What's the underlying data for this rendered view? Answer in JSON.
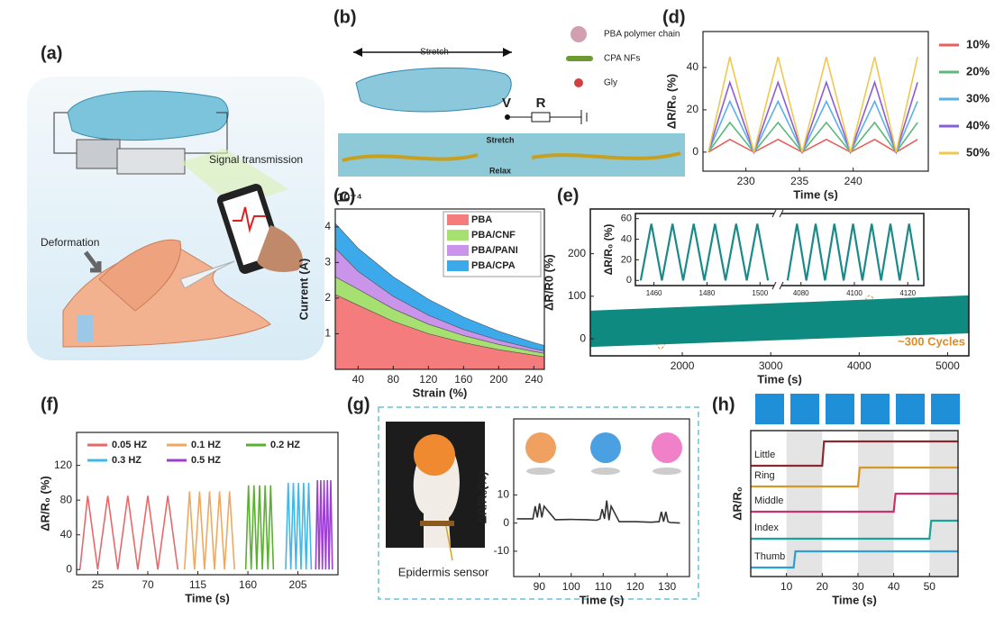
{
  "panel_labels": [
    "(a)",
    "(b)",
    "(c)",
    "(d)",
    "(e)",
    "(f)",
    "(g)",
    "(h)"
  ],
  "illustration_a": {
    "signal": "Signal transmission",
    "deformation": "Deformation"
  },
  "illustration_b": {
    "stretch_top": "Stretch",
    "legend": [
      "PBA polymer chain",
      "CPA NFs",
      "Gly"
    ],
    "voltage": "V",
    "resistor": "R",
    "stretch": "Stretch",
    "relax": "Relax"
  },
  "illustration_g": {
    "sensor": "Epidermis sensor"
  },
  "chart_data": [
    {
      "type": "area",
      "stacked": true,
      "exponent": "10⁻⁴",
      "xlabel": "Strain (%)",
      "ylabel": "Current (A)",
      "x": [
        14,
        40,
        80,
        120,
        160,
        200,
        240,
        252
      ],
      "series": [
        {
          "name": "PBA",
          "color": "#f47c7c",
          "values": [
            2.1,
            1.8,
            1.35,
            1.0,
            0.75,
            0.55,
            0.4,
            0.35
          ]
        },
        {
          "name": "PBA/CNF",
          "color": "#a6e070",
          "values": [
            0.5,
            0.45,
            0.35,
            0.27,
            0.2,
            0.15,
            0.1,
            0.1
          ]
        },
        {
          "name": "PBA/PANI",
          "color": "#c994ea",
          "values": [
            0.8,
            0.5,
            0.35,
            0.25,
            0.17,
            0.12,
            0.08,
            0.07
          ]
        },
        {
          "name": "PBA/CPA",
          "color": "#3ba9ea",
          "values": [
            0.7,
            0.65,
            0.55,
            0.45,
            0.35,
            0.25,
            0.17,
            0.15
          ]
        }
      ],
      "xlim": [
        14,
        252
      ],
      "ylim": [
        0,
        4.5
      ],
      "xticks": [
        40,
        80,
        120,
        160,
        200,
        240
      ],
      "yticks": [
        1,
        2,
        3,
        4
      ],
      "legend": "upper right"
    },
    {
      "type": "line",
      "xlabel": "Time (s)",
      "ylabel": "ΔR/R₀ (%)",
      "x": [
        226.5,
        228.5,
        230.75,
        233,
        235.25,
        237.5,
        239.75,
        242,
        244,
        246
      ],
      "series": [
        {
          "name": "10%",
          "color": "#e8605a",
          "values": [
            0,
            6,
            0,
            6,
            0,
            6,
            0,
            6,
            0,
            6
          ]
        },
        {
          "name": "20%",
          "color": "#5cb87a",
          "values": [
            0,
            14,
            0,
            14,
            0,
            14,
            0,
            14,
            0,
            14
          ]
        },
        {
          "name": "30%",
          "color": "#5ab0e8",
          "values": [
            0,
            24,
            0,
            24,
            0,
            24,
            0,
            24,
            0,
            24
          ]
        },
        {
          "name": "40%",
          "color": "#8a5cd8",
          "values": [
            0,
            33,
            0,
            33,
            0,
            33,
            0,
            33,
            0,
            33
          ]
        },
        {
          "name": "50%",
          "color": "#f0c850",
          "values": [
            0,
            45,
            0,
            45,
            0,
            45,
            0,
            45,
            0,
            45
          ]
        }
      ],
      "xlim": [
        226,
        247
      ],
      "ylim": [
        -9,
        57
      ],
      "xticks": [
        230,
        235,
        240
      ],
      "yticks": [
        0,
        20,
        40
      ],
      "legend": "right"
    },
    {
      "type": "band",
      "xlabel": "Time (s)",
      "ylabel": "ΔR/R0 (%)",
      "color": "#0e8a80",
      "x": [
        960,
        5240
      ],
      "low": [
        -19,
        13
      ],
      "high": [
        66,
        102
      ],
      "xlim": [
        960,
        5240
      ],
      "ylim": [
        -40,
        305
      ],
      "xticks": [
        2000,
        3000,
        4000,
        5000
      ],
      "yticks": [
        0,
        100,
        200
      ],
      "annotation": "~300 Cycles",
      "inset": {
        "ylabel": "ΔR/R₀ (%)",
        "ylim": [
          -5,
          65
        ],
        "yticks": [
          0,
          20,
          40,
          60
        ],
        "color": "#1a8a88",
        "panels": [
          {
            "x": [
              1455,
              1459,
              1463,
              1467,
              1471,
              1475,
              1479,
              1483,
              1487,
              1491,
              1495,
              1499,
              1503
            ],
            "values": [
              0,
              55,
              0,
              55,
              0,
              55,
              0,
              55,
              0,
              55,
              0,
              55,
              0
            ],
            "xlim": [
              1453,
              1505
            ],
            "xticks": [
              1460,
              1480,
              1500
            ]
          },
          {
            "x": [
              4075,
              4078.5,
              4082,
              4085.5,
              4089,
              4092.5,
              4096,
              4099.5,
              4103,
              4106.5,
              4110,
              4113.5,
              4117,
              4120.5,
              4124
            ],
            "values": [
              0,
              55,
              0,
              55,
              0,
              55,
              0,
              55,
              0,
              55,
              0,
              55,
              0,
              55,
              0
            ],
            "xlim": [
              4073,
              4126
            ],
            "xticks": [
              4080,
              4100,
              4120
            ]
          }
        ]
      }
    },
    {
      "type": "line",
      "xlabel": "Time (s)",
      "ylabel": "ΔR/R₀ (%)",
      "series": [
        {
          "name": "0.05 HZ",
          "color": "#e8686a",
          "x": [
            9,
            16,
            25,
            34,
            43,
            52,
            61,
            70,
            79,
            88,
            97
          ],
          "values": [
            0,
            85,
            0,
            85,
            0,
            85,
            0,
            85,
            0,
            85,
            0
          ]
        },
        {
          "name": "0.1 HZ",
          "color": "#f0a860",
          "x": [
            103,
            107.5,
            112,
            116.5,
            121,
            125.5,
            130,
            134.5,
            139,
            143.5,
            148
          ],
          "values": [
            0,
            90,
            0,
            90,
            0,
            90,
            0,
            90,
            0,
            90,
            0
          ]
        },
        {
          "name": "0.2 HZ",
          "color": "#5ab030",
          "x": [
            158,
            160.5,
            163,
            165.5,
            168,
            170.5,
            173,
            175.5,
            178,
            180.5,
            183
          ],
          "values": [
            0,
            97,
            0,
            97,
            0,
            97,
            0,
            97,
            0,
            97,
            0
          ]
        },
        {
          "name": "0.3 HZ",
          "color": "#40b8e8",
          "x": [
            194,
            196.3,
            198.6,
            200.9,
            203.2,
            205.5,
            207.8,
            210.1,
            212.4,
            214.7,
            217
          ],
          "values": [
            0,
            100,
            0,
            100,
            0,
            100,
            0,
            100,
            0,
            100,
            0
          ]
        },
        {
          "name": "0.5 HZ",
          "color": "#9b40d0",
          "x": [
            221,
            222.5,
            224,
            225.5,
            227,
            228.5,
            230,
            231.5,
            233,
            234.5,
            236
          ],
          "values": [
            0,
            103,
            0,
            103,
            0,
            103,
            0,
            103,
            0,
            103,
            0
          ]
        }
      ],
      "xlim": [
        6,
        241
      ],
      "ylim": [
        -6,
        158
      ],
      "xticks": [
        25,
        70,
        115,
        160,
        205
      ],
      "yticks": [
        0,
        40,
        80,
        120
      ],
      "legend": "top"
    },
    {
      "type": "line",
      "xlabel": "Time (s)",
      "ylabel": "ΔR/R₀(%)",
      "color": "#333333",
      "x": [
        83,
        86,
        88,
        88.7,
        89.4,
        90.1,
        90.8,
        91.5,
        95,
        100,
        105,
        108,
        109,
        109.7,
        110.4,
        111.1,
        111.8,
        112.5,
        115,
        120,
        125,
        127.5,
        128.2,
        128.9,
        129.6,
        130.3,
        131,
        134
      ],
      "values": [
        1.5,
        1.5,
        1.5,
        6,
        2,
        7,
        2,
        6,
        1.2,
        1.3,
        1.2,
        1,
        1.5,
        5,
        1.5,
        8,
        1,
        6,
        0.5,
        0.5,
        0.3,
        0.5,
        4,
        0.5,
        4,
        0.5,
        0.2,
        0
      ],
      "xlim": [
        82,
        137
      ],
      "ylim": [
        -19,
        37
      ],
      "xticks": [
        90,
        100,
        110,
        120,
        130
      ],
      "yticks": [
        -10,
        0,
        10
      ]
    },
    {
      "type": "step",
      "xlabel": "Time (s)",
      "ylabel": "ΔR/R₀",
      "xlim": [
        0,
        58
      ],
      "xticks": [
        10,
        20,
        30,
        40,
        50
      ],
      "shaded": [
        [
          10,
          20
        ],
        [
          30,
          40
        ],
        [
          50,
          60
        ]
      ],
      "series": [
        {
          "name": "Little",
          "color": "#8b2a2a",
          "step_x": 20
        },
        {
          "name": "Ring",
          "color": "#d4982a",
          "step_x": 30
        },
        {
          "name": "Middle",
          "color": "#c8336e",
          "step_x": 40
        },
        {
          "name": "Index",
          "color": "#1aa39a",
          "step_x": 50
        },
        {
          "name": "Thumb",
          "color": "#2d9fd6",
          "step_x": 12
        }
      ]
    }
  ]
}
